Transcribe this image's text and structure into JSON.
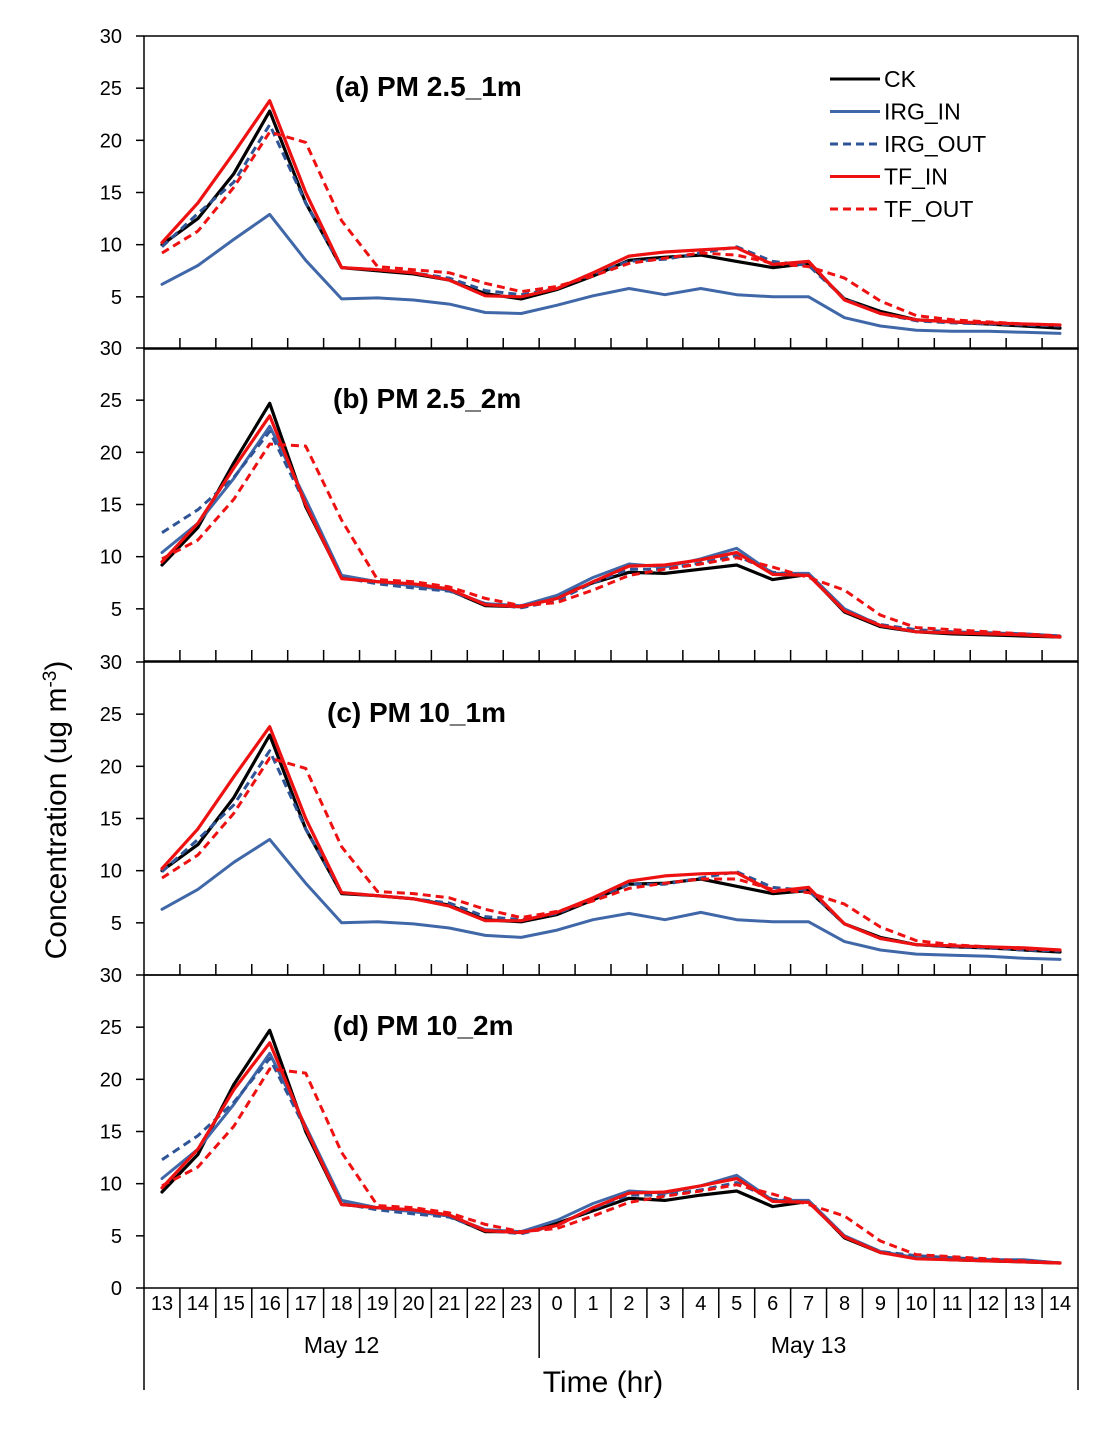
{
  "chart_data": {
    "type": "line",
    "xlabel": "Time (hr)",
    "ylabel": "Concentration (ug m-3)",
    "ylabel_main": "Concentration (ug m",
    "ylabel_sup": "-3",
    "ylabel_close": ")",
    "ylim": [
      0,
      30
    ],
    "yticks": [
      0,
      5,
      10,
      15,
      20,
      25,
      30
    ],
    "categories": [
      "13",
      "14",
      "15",
      "16",
      "17",
      "18",
      "19",
      "20",
      "21",
      "22",
      "23",
      "0",
      "1",
      "2",
      "3",
      "4",
      "5",
      "6",
      "7",
      "8",
      "9",
      "10",
      "11",
      "12",
      "13",
      "14"
    ],
    "date_groups": [
      {
        "label": "May 12",
        "start": 0,
        "end": 10
      },
      {
        "label": "May 13",
        "start": 11,
        "end": 25
      }
    ],
    "legend": [
      "CK",
      "IRG_IN",
      "IRG_OUT",
      "TF_IN",
      "TF_OUT"
    ],
    "series_styles": [
      {
        "name": "CK",
        "color": "#000000",
        "dash": "solid"
      },
      {
        "name": "IRG_IN",
        "color": "#4068a8",
        "dash": "solid"
      },
      {
        "name": "IRG_OUT",
        "color": "#2f5597",
        "dash": "dashed"
      },
      {
        "name": "TF_IN",
        "color": "#ee1111",
        "dash": "solid"
      },
      {
        "name": "TF_OUT",
        "color": "#ee1111",
        "dash": "dashed"
      }
    ],
    "panels": [
      {
        "title": "(a) PM 2.5_1m",
        "series": [
          {
            "name": "CK",
            "values": [
              10.0,
              12.5,
              16.8,
              22.8,
              14.0,
              7.8,
              7.5,
              7.2,
              6.6,
              5.3,
              4.8,
              5.7,
              7.0,
              8.5,
              8.8,
              9.0,
              8.4,
              7.8,
              8.2,
              4.8,
              3.6,
              2.8,
              2.6,
              2.4,
              2.2,
              2.0
            ]
          },
          {
            "name": "IRG_IN",
            "values": [
              6.2,
              8.0,
              10.5,
              12.9,
              8.5,
              4.8,
              4.9,
              4.7,
              4.3,
              3.5,
              3.4,
              4.2,
              5.1,
              5.8,
              5.2,
              5.8,
              5.2,
              5.0,
              5.0,
              3.0,
              2.2,
              1.8,
              1.7,
              1.7,
              1.6,
              1.5
            ]
          },
          {
            "name": "IRG_OUT",
            "values": [
              9.8,
              13.0,
              16.0,
              21.5,
              14.0,
              7.8,
              7.6,
              7.3,
              6.8,
              5.6,
              5.2,
              5.8,
              7.2,
              8.4,
              8.6,
              9.2,
              9.8,
              8.4,
              8.0,
              4.8,
              3.4,
              2.7,
              2.5,
              2.4,
              2.3,
              2.2
            ]
          },
          {
            "name": "TF_IN",
            "values": [
              10.2,
              14.0,
              18.8,
              23.8,
              15.0,
              7.8,
              7.6,
              7.3,
              6.6,
              5.1,
              5.0,
              5.8,
              7.3,
              8.9,
              9.3,
              9.5,
              9.7,
              8.1,
              8.4,
              4.7,
              3.4,
              2.8,
              2.6,
              2.5,
              2.4,
              2.3
            ]
          },
          {
            "name": "TF_OUT",
            "values": [
              9.2,
              11.3,
              15.5,
              20.8,
              19.8,
              12.3,
              7.9,
              7.6,
              7.3,
              6.3,
              5.5,
              6.0,
              7.0,
              8.2,
              8.7,
              9.2,
              9.0,
              8.2,
              7.9,
              6.8,
              4.6,
              3.2,
              2.8,
              2.6,
              2.4,
              2.3
            ]
          }
        ]
      },
      {
        "title": "(b) PM 2.5_2m",
        "series": [
          {
            "name": "CK",
            "values": [
              9.2,
              12.8,
              19.0,
              24.7,
              14.8,
              8.0,
              7.6,
              7.3,
              6.8,
              5.3,
              5.2,
              6.2,
              7.5,
              8.5,
              8.4,
              8.8,
              9.2,
              7.8,
              8.3,
              4.7,
              3.3,
              2.8,
              2.6,
              2.5,
              2.4,
              2.3
            ]
          },
          {
            "name": "IRG_IN",
            "values": [
              10.4,
              13.2,
              17.5,
              22.5,
              15.5,
              8.2,
              7.6,
              7.2,
              6.8,
              5.5,
              5.3,
              6.3,
              8.0,
              9.3,
              9.0,
              9.8,
              10.8,
              8.4,
              8.4,
              5.0,
              3.4,
              2.8,
              2.7,
              2.6,
              2.6,
              2.4
            ]
          },
          {
            "name": "IRG_OUT",
            "values": [
              12.3,
              14.5,
              17.6,
              22.0,
              15.0,
              8.0,
              7.4,
              7.0,
              6.7,
              5.5,
              5.1,
              5.8,
              7.5,
              8.8,
              8.8,
              9.4,
              10.1,
              8.5,
              8.2,
              4.8,
              3.5,
              3.0,
              2.8,
              2.7,
              2.6,
              2.4
            ]
          },
          {
            "name": "TF_IN",
            "values": [
              9.5,
              13.2,
              18.5,
              23.5,
              15.0,
              7.9,
              7.6,
              7.4,
              6.9,
              5.4,
              5.2,
              6.0,
              7.6,
              9.1,
              9.2,
              9.7,
              10.4,
              8.3,
              8.2,
              4.8,
              3.4,
              2.8,
              2.7,
              2.6,
              2.5,
              2.3
            ]
          },
          {
            "name": "TF_OUT",
            "values": [
              9.8,
              11.6,
              15.5,
              20.8,
              20.6,
              13.5,
              7.8,
              7.6,
              7.1,
              6.0,
              5.3,
              5.6,
              6.8,
              8.2,
              8.8,
              9.3,
              9.9,
              9.0,
              8.0,
              6.8,
              4.4,
              3.2,
              3.0,
              2.8,
              2.6,
              2.4
            ]
          }
        ]
      },
      {
        "title": "(c) PM 10_1m",
        "series": [
          {
            "name": "CK",
            "values": [
              10.0,
              12.5,
              17.0,
              23.0,
              14.0,
              7.8,
              7.6,
              7.3,
              6.7,
              5.3,
              5.1,
              5.8,
              7.2,
              8.7,
              8.8,
              9.2,
              8.5,
              7.8,
              8.1,
              4.9,
              3.6,
              2.9,
              2.7,
              2.6,
              2.4,
              2.2
            ]
          },
          {
            "name": "IRG_IN",
            "values": [
              6.3,
              8.2,
              10.8,
              13.0,
              8.8,
              5.0,
              5.1,
              4.9,
              4.5,
              3.8,
              3.6,
              4.3,
              5.3,
              5.9,
              5.3,
              6.0,
              5.3,
              5.1,
              5.1,
              3.2,
              2.4,
              2.0,
              1.9,
              1.8,
              1.6,
              1.5
            ]
          },
          {
            "name": "IRG_OUT",
            "values": [
              9.9,
              13.0,
              16.3,
              21.5,
              14.0,
              7.9,
              7.6,
              7.3,
              6.9,
              5.6,
              5.3,
              5.9,
              7.3,
              8.7,
              8.7,
              9.3,
              9.9,
              8.4,
              8.1,
              4.9,
              3.5,
              2.9,
              2.7,
              2.6,
              2.4,
              2.3
            ]
          },
          {
            "name": "TF_IN",
            "values": [
              10.2,
              14.0,
              19.0,
              23.8,
              15.0,
              7.9,
              7.6,
              7.3,
              6.6,
              5.2,
              5.2,
              6.0,
              7.4,
              9.0,
              9.5,
              9.7,
              9.8,
              8.0,
              8.4,
              4.9,
              3.5,
              2.9,
              2.8,
              2.7,
              2.6,
              2.4
            ]
          },
          {
            "name": "TF_OUT",
            "values": [
              9.3,
              11.5,
              15.5,
              20.8,
              19.8,
              12.3,
              8.0,
              7.8,
              7.4,
              6.3,
              5.5,
              6.1,
              7.1,
              8.3,
              8.8,
              9.2,
              9.2,
              8.2,
              7.9,
              6.8,
              4.6,
              3.3,
              2.9,
              2.7,
              2.5,
              2.4
            ]
          }
        ]
      },
      {
        "title": "(d) PM 10_2m",
        "series": [
          {
            "name": "CK",
            "values": [
              9.2,
              12.8,
              19.5,
              24.7,
              15.0,
              8.0,
              7.7,
              7.4,
              6.9,
              5.4,
              5.4,
              6.2,
              7.4,
              8.6,
              8.4,
              8.9,
              9.3,
              7.8,
              8.3,
              4.8,
              3.4,
              2.9,
              2.7,
              2.6,
              2.5,
              2.4
            ]
          },
          {
            "name": "IRG_IN",
            "values": [
              10.5,
              13.3,
              17.6,
              22.5,
              15.5,
              8.4,
              7.7,
              7.3,
              6.9,
              5.6,
              5.4,
              6.5,
              8.1,
              9.3,
              9.1,
              9.8,
              10.8,
              8.4,
              8.4,
              5.0,
              3.5,
              2.9,
              2.8,
              2.7,
              2.7,
              2.4
            ]
          },
          {
            "name": "IRG_OUT",
            "values": [
              12.3,
              14.6,
              17.8,
              22.0,
              15.2,
              8.1,
              7.5,
              7.1,
              6.8,
              5.5,
              5.2,
              6.0,
              7.6,
              8.9,
              8.9,
              9.4,
              10.1,
              8.5,
              8.2,
              4.9,
              3.5,
              3.1,
              2.9,
              2.7,
              2.6,
              2.4
            ]
          },
          {
            "name": "TF_IN",
            "values": [
              9.6,
              13.3,
              19.0,
              23.5,
              15.3,
              8.0,
              7.7,
              7.5,
              7.0,
              5.5,
              5.3,
              6.0,
              7.7,
              9.1,
              9.2,
              9.8,
              10.5,
              8.3,
              8.2,
              4.9,
              3.4,
              2.8,
              2.7,
              2.6,
              2.5,
              2.4
            ]
          },
          {
            "name": "TF_OUT",
            "values": [
              9.8,
              11.6,
              15.5,
              21.0,
              20.6,
              13.0,
              7.9,
              7.7,
              7.2,
              6.1,
              5.4,
              5.7,
              6.9,
              8.2,
              8.8,
              9.3,
              9.9,
              9.0,
              8.0,
              6.9,
              4.5,
              3.2,
              3.0,
              2.8,
              2.6,
              2.4
            ]
          }
        ]
      }
    ]
  }
}
